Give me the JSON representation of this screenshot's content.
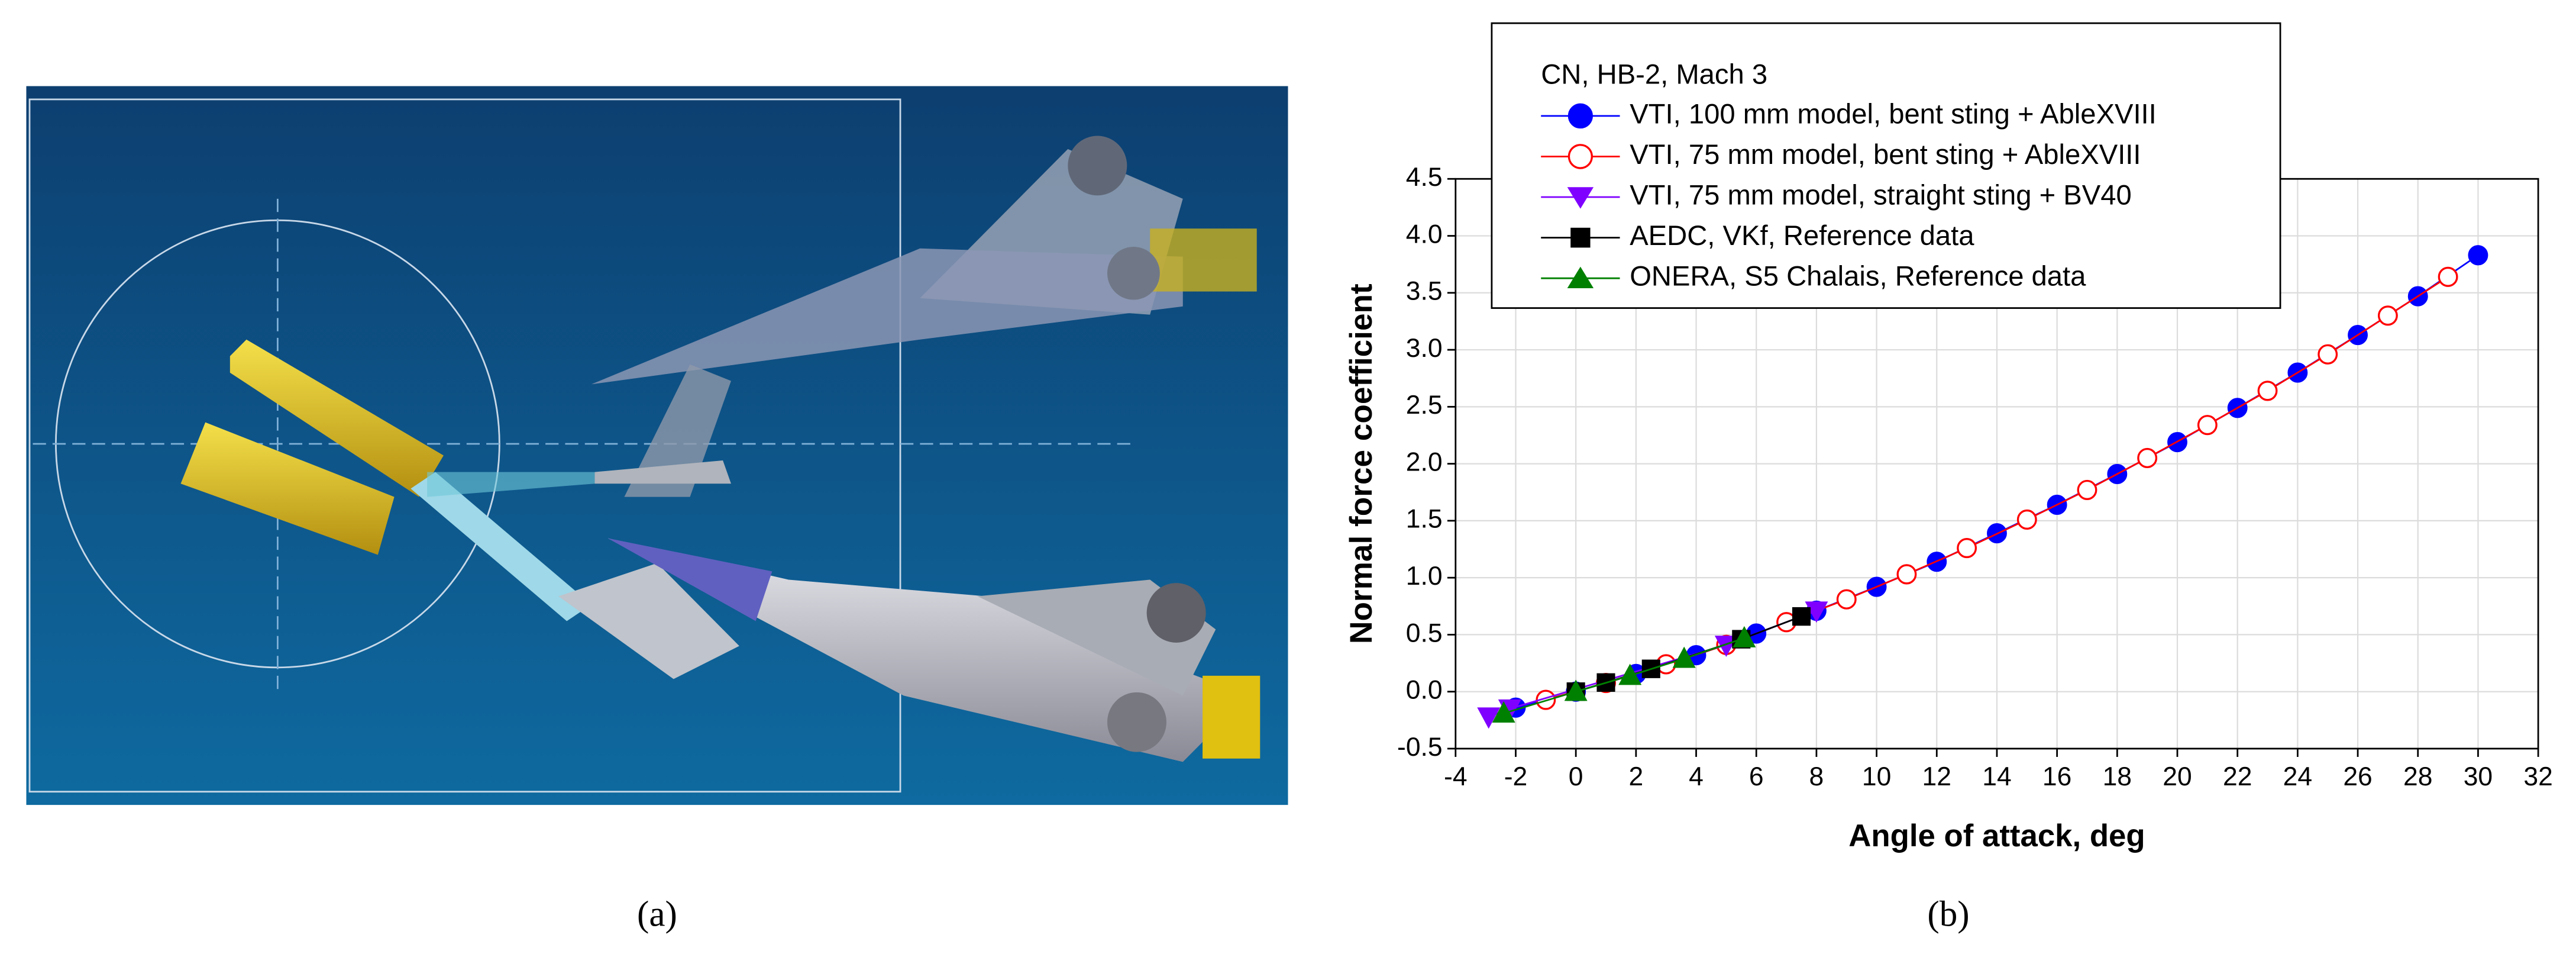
{
  "panels": {
    "a": {
      "caption": "(a)"
    },
    "b": {
      "caption": "(b)"
    }
  },
  "chart_data": {
    "type": "line",
    "legend_title": "CN, HB-2, Mach 3",
    "x_label": "Angle of attack, deg",
    "y_label": "Normal force coefficient",
    "xlim": [
      -4,
      32
    ],
    "ylim": [
      -0.5,
      4.5
    ],
    "xticks": [
      -4,
      -2,
      0,
      2,
      4,
      6,
      8,
      10,
      12,
      14,
      16,
      18,
      20,
      22,
      24,
      26,
      28,
      30,
      32
    ],
    "yticks": [
      -0.5,
      {
        "value": 0,
        "label": "0.0"
      },
      0.5,
      {
        "value": 1,
        "label": "1.0"
      },
      1.5,
      {
        "value": 2,
        "label": "2.0"
      },
      2.5,
      {
        "value": 3,
        "label": "3.0"
      },
      3.5,
      {
        "value": 4,
        "label": "4.0"
      },
      4.5
    ],
    "grid": true,
    "legend": "top",
    "series": [
      {
        "name": "VTI, 100 mm model, bent sting + AbleXVIII",
        "color": "#0000ff",
        "marker": "circle",
        "filled": true,
        "x": [
          -2,
          0,
          2,
          4,
          6,
          8,
          10,
          12,
          14,
          16,
          18,
          20,
          22,
          24,
          26,
          28,
          30
        ],
        "values": [
          -0.14,
          0,
          0.155,
          0.32,
          0.51,
          0.71,
          0.92,
          1.14,
          1.39,
          1.64,
          1.91,
          2.19,
          2.49,
          2.8,
          3.13,
          3.47,
          3.83
        ]
      },
      {
        "name": "VTI, 75 mm model, bent sting + AbleXVIII",
        "color": "#ff0000",
        "marker": "circle",
        "filled": false,
        "x": [
          -1,
          1,
          3,
          5,
          7,
          9,
          11,
          13,
          15,
          17,
          19,
          21,
          23,
          25,
          27,
          29
        ],
        "values": [
          -0.072,
          0.076,
          0.24,
          0.41,
          0.61,
          0.81,
          1.03,
          1.26,
          1.51,
          1.77,
          2.05,
          2.34,
          2.64,
          2.96,
          3.3,
          3.64
        ]
      },
      {
        "name": "VTI, 75 mm model, straight sting + BV40",
        "color": "#8000ff",
        "marker": "triangle-down",
        "filled": true,
        "x": [
          -2.9,
          -2.2,
          5,
          8
        ],
        "values": [
          -0.22,
          -0.15,
          0.41,
          0.71
        ]
      },
      {
        "name": "AEDC, VKf, Reference data",
        "color": "#000000",
        "marker": "square",
        "filled": true,
        "x": [
          0,
          1,
          2.5,
          5.5,
          7.5
        ],
        "values": [
          0,
          0.08,
          0.2,
          0.46,
          0.66
        ]
      },
      {
        "name": "ONERA, S5 Chalais, Reference data",
        "color": "#008000",
        "marker": "triangle-up",
        "filled": true,
        "x": [
          -2.4,
          0,
          1.8,
          3.6,
          5.6
        ],
        "values": [
          -0.19,
          0,
          0.14,
          0.29,
          0.47
        ]
      }
    ]
  }
}
